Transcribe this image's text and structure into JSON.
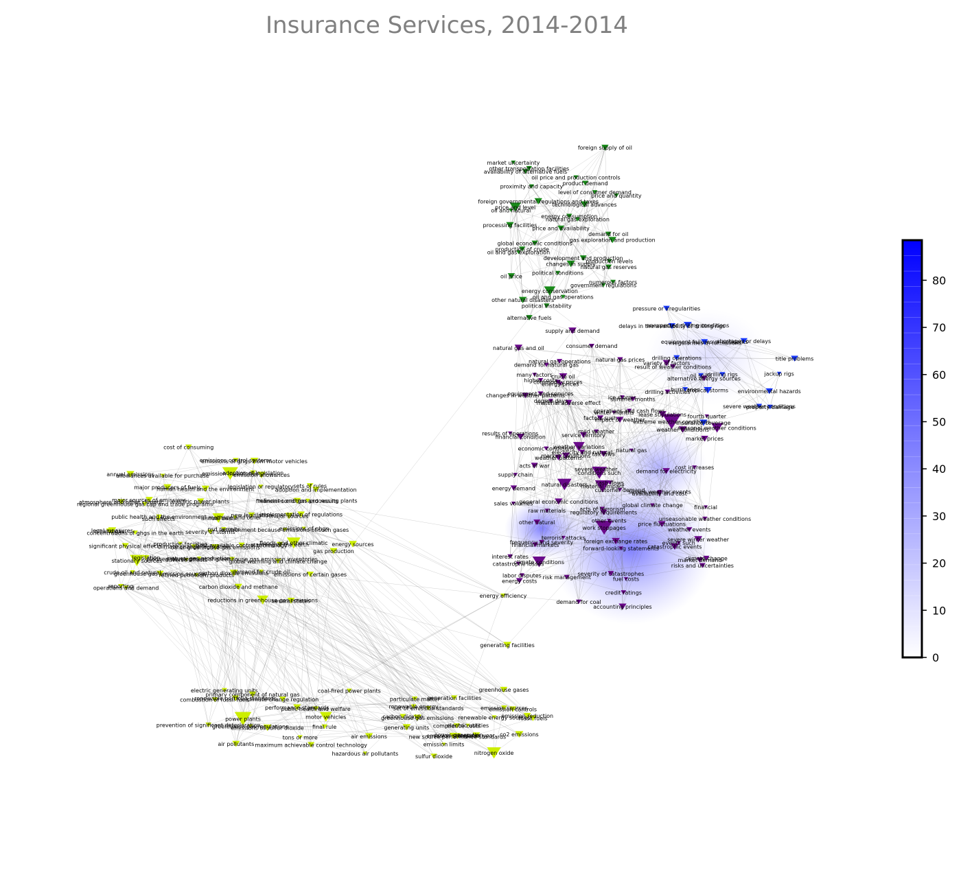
{
  "title": "Insurance Services, 2014-2014",
  "colorbar": {
    "ticks": [
      "0",
      "10",
      "20",
      "30",
      "40",
      "50",
      "60",
      "70",
      "80"
    ],
    "colors": {
      "low": "#ffffff",
      "high": "#0000ff"
    }
  },
  "colors": {
    "yellow": "#ccee00",
    "green": "#1a8a1a",
    "purple": "#6a0a8a",
    "blue": "#1a3aff"
  },
  "clusters": {
    "green": [
      "foreign supply of oil",
      "other transportation facilities",
      "market uncertainty",
      "product demand",
      "oil price and production controls",
      "availability of alternative fuels",
      "level of consumer demand",
      "proximity and capacity",
      "price and level",
      "foreign governmental regulations and taxes",
      "price and quantity",
      "energy consumption",
      "oil and natural",
      "technological advances",
      "processing facilities",
      "natural gas exploration",
      "gas exploration and production",
      "demand for oil",
      "price and availability",
      "production of crude",
      "global economic conditions",
      "changes in supply",
      "development and production",
      "oil and gas exploration",
      "political conditions",
      "natural gas reserves",
      "production levels",
      "numerous factors",
      "oil price",
      "oil and gas operations",
      "energy conservation",
      "government regulations",
      "political instability",
      "other natural disasters",
      "alternative fuels"
    ],
    "blue": [
      "pressure or irregularities",
      "delays in the availability of drilling rigs",
      "unexpected drilling conditions",
      "irregularities in formations",
      "equipment failures or accidents",
      "shortages or delays",
      "title problems",
      "drilling operations",
      "oil spills",
      "drilling rigs",
      "jackup rigs",
      "environmental hazards",
      "tropical storms",
      "hurricanes",
      "property damage",
      "severe weather conditions",
      "insurance coverage"
    ],
    "purple": [
      "supply and demand",
      "natural gas prices",
      "consumer demand",
      "many factors",
      "natural gas operations",
      "natural gas and oil",
      "crude oil",
      "variety of factors",
      "drilling activities",
      "alternative energy sources",
      "demand for natural gas",
      "equipment and services",
      "higher costs",
      "result of weather conditions",
      "changes in weather patterns",
      "commodity prices",
      "operations and cash flows",
      "ice storms",
      "energy prices",
      "winter months",
      "summer months",
      "seasonal weather conditions",
      "lease stipulations",
      "degree days",
      "weather conditions",
      "fourth quarter",
      "material adverse effect",
      "mild weather",
      "factors such",
      "weather variations",
      "results of operations",
      "impact of weather",
      "economic conditions",
      "service territory",
      "extreme weather conditions",
      "natural gas",
      "financial condition",
      "acts of war",
      "electricity and natural",
      "market prices",
      "cost increases",
      "tax laws",
      "cash flows",
      "severe weather",
      "market conditions",
      "natural disasters",
      "demand for electricity",
      "weather patterns",
      "material impact",
      "conditions such",
      "general economic conditions",
      "energy demand",
      "supply chain",
      "sales volumes",
      "customer demand",
      "unseasonable weather conditions",
      "global climate change",
      "severe weather events",
      "other events",
      "financial",
      "availability and cost",
      "other natural",
      "acts of terrorism",
      "terrorist attacks",
      "price fluctuations",
      "raw materials",
      "severe winter weather",
      "frequency and severity",
      "regulatory requirements",
      "foreign exchange rates",
      "work stoppages",
      "interest rates",
      "events such",
      "weather events",
      "climate change",
      "financial markets",
      "severity of catastrophes",
      "market demand",
      "catastrophic events",
      "labor disputes",
      "climate conditions",
      "forward-looking statements",
      "risk management",
      "catastrophe losses",
      "credit ratings",
      "fuel costs",
      "risks and uncertainties",
      "demand for coal",
      "energy costs",
      "accounting principles"
    ],
    "yellow": [
      "cost of consuming",
      "adoption of legislation",
      "emissions control systems",
      "sets of rules",
      "emission inventories",
      "emissions of ghgs from motor vehicles",
      "legislation or regulatory",
      "annual emissions",
      "major sources of emissions",
      "major producers of fuels",
      "emission allowances",
      "refineries and gas processing plants",
      "financial condition and results",
      "allowances available for purchase",
      "electric power plants",
      "human health and the environment",
      "implementation of regulations",
      "atmosphere and other climatic",
      "adoption and implementation",
      "new legislation",
      "energy sources",
      "emissions of ghgs",
      "major sources",
      "gas production",
      "psd permits",
      "public health and the environment",
      "regional greenhouse gas cap and trade programs",
      "environment because emissions of such gases",
      "methane and other",
      "floods and other climatic",
      "legal measures",
      "annual basis",
      "production facilities",
      "oil and gas",
      "such effects",
      "warming of the earth",
      "severity of storms",
      "legislation",
      "best available control technology",
      "concentrations of ghgs in the earth",
      "natural gas production",
      "significant physical effects",
      "demand for crude oil",
      "planned development of greenhouse gas emission inventories",
      "climate change legislation",
      "crude oil and natural",
      "adverse effects",
      "other greenhouse gas emissions",
      "carbon dioxide emissions",
      "stationary sources",
      "reporting",
      "greenhouse gas emission sources",
      "global warming and climate change",
      "carbon dioxide and methane",
      "emissions of certain gases",
      "reductions in greenhouse gas emissions",
      "operations and demand",
      "refined petroleum products",
      "several states",
      "primary component of natural gas",
      "energy efficiency",
      "generation facilities",
      "greenhouse gases",
      "renewable energy",
      "renewable portfolio standards",
      "electric generating units",
      "generating facilities",
      "particulate matter",
      "coal-fired power plants",
      "performance standards",
      "climate change regulation",
      "emission reduction",
      "emission sources",
      "combustion of fossil fuels",
      "carbon dioxide",
      "set of emission standards",
      "prevention of significant deterioration",
      "motor vehicles",
      "public health and welfare",
      "electric utilities",
      "renewable energy sources",
      "emission controls",
      "compliance costs",
      "greenhouse gas emissions",
      "co2 emissions",
      "greenhouse gas regulations",
      "fossil fuels",
      "power generation",
      "final rule",
      "power plants",
      "tons per year",
      "generating units",
      "air pollutants",
      "emission standards",
      "emissions of sulfur dioxide",
      "emission limits",
      "air emissions",
      "nitrogen oxide",
      "maximum achievable control technology",
      "new source performance standards",
      "hazardous air pollutants",
      "sulfur dioxide",
      "tons or more"
    ]
  }
}
